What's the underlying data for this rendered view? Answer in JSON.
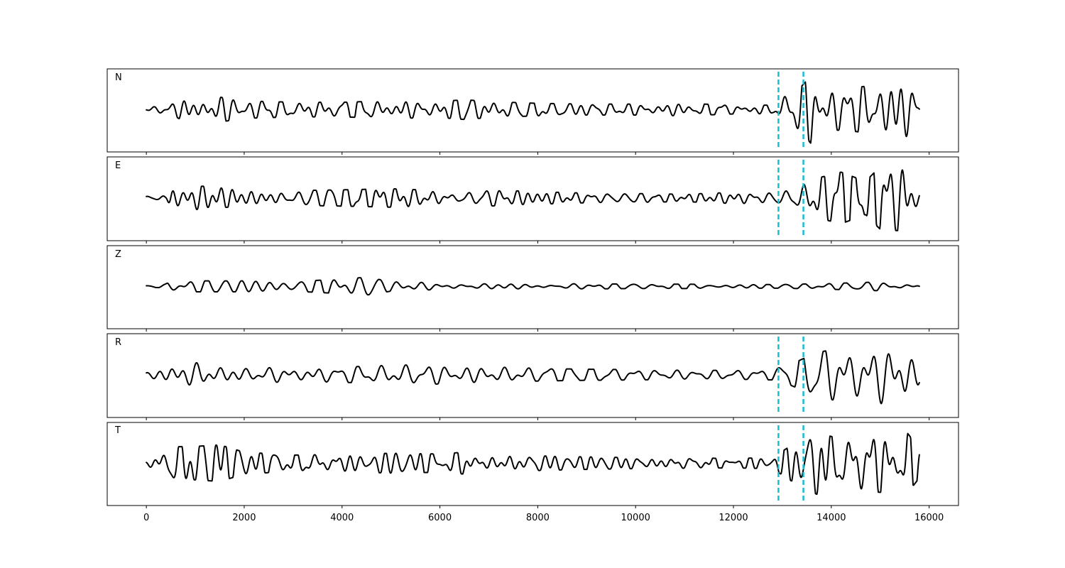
{
  "chart_data": {
    "type": "line",
    "title": "",
    "xlabel": "",
    "ylabel": "",
    "xlim": [
      -800,
      16600
    ],
    "x_ticks": [
      0,
      2000,
      4000,
      6000,
      8000,
      10000,
      12000,
      14000,
      16000
    ],
    "x_tick_labels": [
      "0",
      "2000",
      "4000",
      "6000",
      "8000",
      "10000",
      "12000",
      "14000",
      "16000"
    ],
    "grid": false,
    "legend": "none",
    "trace_color": "#000000",
    "marker_color": "#17becf",
    "marker_style": "dashed",
    "markers_x": [
      12920,
      13430
    ],
    "trace_x_range": [
      0,
      15800
    ],
    "series": [
      {
        "name": "N",
        "envelope": [
          [
            0,
            0.05
          ],
          [
            500,
            0.15
          ],
          [
            800,
            0.32
          ],
          [
            1300,
            0.38
          ],
          [
            2000,
            0.24
          ],
          [
            3000,
            0.2
          ],
          [
            4000,
            0.2
          ],
          [
            5000,
            0.24
          ],
          [
            6000,
            0.22
          ],
          [
            6500,
            0.27
          ],
          [
            7000,
            0.22
          ],
          [
            8000,
            0.17
          ],
          [
            9000,
            0.15
          ],
          [
            10000,
            0.15
          ],
          [
            11000,
            0.17
          ],
          [
            12000,
            0.12
          ],
          [
            12800,
            0.12
          ],
          [
            13000,
            0.4
          ],
          [
            13300,
            0.5
          ],
          [
            13600,
            0.95
          ],
          [
            14000,
            0.55
          ],
          [
            14500,
            0.6
          ],
          [
            15000,
            0.7
          ],
          [
            15600,
            0.85
          ],
          [
            15800,
            0.5
          ]
        ]
      },
      {
        "name": "E",
        "envelope": [
          [
            0,
            0.06
          ],
          [
            400,
            0.1
          ],
          [
            500,
            0.55
          ],
          [
            700,
            0.3
          ],
          [
            1200,
            0.32
          ],
          [
            2000,
            0.2
          ],
          [
            3000,
            0.2
          ],
          [
            4000,
            0.22
          ],
          [
            5000,
            0.25
          ],
          [
            6000,
            0.2
          ],
          [
            7000,
            0.22
          ],
          [
            8000,
            0.17
          ],
          [
            9000,
            0.13
          ],
          [
            10000,
            0.12
          ],
          [
            11000,
            0.1
          ],
          [
            12000,
            0.15
          ],
          [
            12800,
            0.15
          ],
          [
            13200,
            0.3
          ],
          [
            13600,
            0.5
          ],
          [
            14200,
            0.7
          ],
          [
            14700,
            0.45
          ],
          [
            15000,
            0.85
          ],
          [
            15500,
            0.9
          ],
          [
            15800,
            0.4
          ]
        ]
      },
      {
        "name": "Z",
        "envelope": [
          [
            0,
            0.02
          ],
          [
            350,
            0.04
          ],
          [
            450,
            0.1
          ],
          [
            700,
            0.12
          ],
          [
            1000,
            0.15
          ],
          [
            2000,
            0.15
          ],
          [
            3000,
            0.13
          ],
          [
            4000,
            0.2
          ],
          [
            4500,
            0.25
          ],
          [
            5000,
            0.13
          ],
          [
            6000,
            0.1
          ],
          [
            7000,
            0.1
          ],
          [
            8000,
            0.08
          ],
          [
            9000,
            0.07
          ],
          [
            10000,
            0.06
          ],
          [
            11000,
            0.06
          ],
          [
            12000,
            0.05
          ],
          [
            13000,
            0.05
          ],
          [
            14000,
            0.08
          ],
          [
            15000,
            0.12
          ],
          [
            15800,
            0.1
          ]
        ]
      },
      {
        "name": "R",
        "envelope": [
          [
            0,
            0.06
          ],
          [
            500,
            0.4
          ],
          [
            1000,
            0.4
          ],
          [
            2000,
            0.22
          ],
          [
            3000,
            0.22
          ],
          [
            4000,
            0.2
          ],
          [
            5000,
            0.27
          ],
          [
            6000,
            0.25
          ],
          [
            7000,
            0.25
          ],
          [
            8000,
            0.17
          ],
          [
            9000,
            0.15
          ],
          [
            10000,
            0.14
          ],
          [
            11000,
            0.12
          ],
          [
            12000,
            0.12
          ],
          [
            12800,
            0.14
          ],
          [
            13200,
            0.3
          ],
          [
            13700,
            0.6
          ],
          [
            14300,
            0.75
          ],
          [
            15000,
            0.85
          ],
          [
            15500,
            0.95
          ],
          [
            15800,
            0.5
          ]
        ]
      },
      {
        "name": "T",
        "envelope": [
          [
            0,
            0.06
          ],
          [
            500,
            0.45
          ],
          [
            900,
            0.45
          ],
          [
            1500,
            0.5
          ],
          [
            2000,
            0.3
          ],
          [
            3000,
            0.22
          ],
          [
            4000,
            0.24
          ],
          [
            5000,
            0.27
          ],
          [
            6000,
            0.25
          ],
          [
            6500,
            0.3
          ],
          [
            7000,
            0.22
          ],
          [
            8000,
            0.2
          ],
          [
            9000,
            0.17
          ],
          [
            10000,
            0.15
          ],
          [
            11000,
            0.14
          ],
          [
            12000,
            0.13
          ],
          [
            12800,
            0.15
          ],
          [
            13200,
            0.5
          ],
          [
            13700,
            0.85
          ],
          [
            14200,
            0.65
          ],
          [
            15000,
            0.8
          ],
          [
            15500,
            0.92
          ],
          [
            15800,
            0.4
          ]
        ]
      }
    ]
  }
}
